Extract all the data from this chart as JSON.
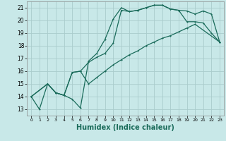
{
  "xlabel": "Humidex (Indice chaleur)",
  "background_color": "#c8e8e8",
  "grid_color": "#aacccc",
  "line_color": "#1a6b5a",
  "xlim": [
    -0.5,
    23.5
  ],
  "ylim": [
    12.5,
    21.5
  ],
  "xticks": [
    0,
    1,
    2,
    3,
    4,
    5,
    6,
    7,
    8,
    9,
    10,
    11,
    12,
    13,
    14,
    15,
    16,
    17,
    18,
    19,
    20,
    21,
    22,
    23
  ],
  "yticks": [
    13,
    14,
    15,
    16,
    17,
    18,
    19,
    20,
    21
  ],
  "line1_x": [
    0,
    1,
    2,
    3,
    4,
    5,
    6,
    7,
    8,
    9,
    10,
    11,
    12,
    13,
    14,
    15,
    16,
    17,
    18,
    19,
    20,
    21,
    22,
    23
  ],
  "line1_y": [
    14.0,
    13.0,
    15.0,
    14.3,
    14.1,
    13.8,
    13.1,
    16.8,
    17.4,
    18.5,
    20.1,
    21.0,
    20.7,
    20.8,
    21.0,
    21.2,
    21.2,
    20.9,
    20.8,
    19.9,
    19.9,
    19.8,
    19.0,
    18.3
  ],
  "line2_x": [
    0,
    2,
    3,
    4,
    5,
    6,
    7,
    8,
    9,
    10,
    11,
    12,
    13,
    14,
    15,
    16,
    17,
    18,
    19,
    20,
    23
  ],
  "line2_y": [
    14.0,
    15.0,
    14.3,
    14.1,
    15.9,
    16.0,
    15.0,
    15.5,
    16.0,
    16.5,
    16.9,
    17.3,
    17.6,
    18.0,
    18.3,
    18.6,
    18.8,
    19.1,
    19.4,
    19.7,
    18.3
  ],
  "line3_x": [
    0,
    2,
    3,
    4,
    5,
    6,
    7,
    8,
    9,
    10,
    11,
    12,
    13,
    14,
    15,
    16,
    17,
    18,
    19,
    20,
    21,
    22,
    23
  ],
  "line3_y": [
    14.0,
    15.0,
    14.3,
    14.1,
    15.9,
    16.0,
    16.7,
    17.1,
    17.4,
    18.2,
    20.8,
    20.7,
    20.8,
    21.0,
    21.2,
    21.2,
    20.9,
    20.8,
    20.75,
    20.5,
    20.75,
    20.5,
    18.3
  ],
  "tick_fontsize": 6,
  "xlabel_fontsize": 7,
  "linewidth": 0.9,
  "markersize": 2.0
}
